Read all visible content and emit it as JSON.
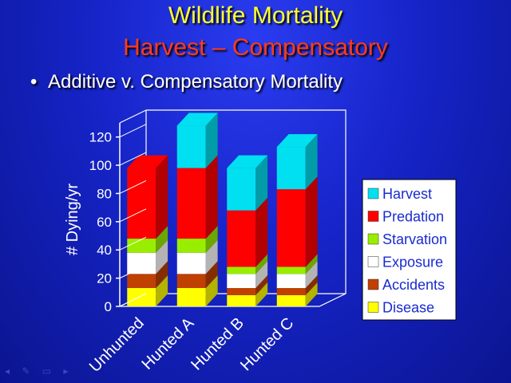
{
  "slide": {
    "title": "Wildlife Mortality",
    "subtitle": "Harvest – Compensatory",
    "bullet": "Additive v. Compensatory Mortality"
  },
  "colors": {
    "title": "#ffff33",
    "subtitle": "#ff3b1a",
    "background": "#1624c8"
  },
  "chart_data": {
    "type": "bar",
    "stacked": true,
    "three_d": true,
    "categories": [
      "Unhunted",
      "Hunted A",
      "Hunted B",
      "Hunted C"
    ],
    "ylabel": "# Dying/yr",
    "xlabel": "",
    "ylim": [
      0,
      130
    ],
    "yticks": [
      0,
      20,
      40,
      60,
      80,
      100,
      120
    ],
    "grid": false,
    "legend": "right",
    "series": [
      {
        "name": "Disease",
        "color": "#ffff00",
        "values": [
          13,
          13,
          8,
          8
        ]
      },
      {
        "name": "Accidents",
        "color": "#c04000",
        "values": [
          10,
          10,
          5,
          5
        ]
      },
      {
        "name": "Exposure",
        "color": "#ffffff",
        "values": [
          15,
          15,
          10,
          10
        ]
      },
      {
        "name": "Starvation",
        "color": "#99ee00",
        "values": [
          10,
          10,
          5,
          5
        ]
      },
      {
        "name": "Predation",
        "color": "#ff0000",
        "values": [
          50,
          50,
          40,
          55
        ]
      },
      {
        "name": "Harvest",
        "color": "#00e0f0",
        "values": [
          0,
          30,
          30,
          30
        ]
      }
    ]
  }
}
